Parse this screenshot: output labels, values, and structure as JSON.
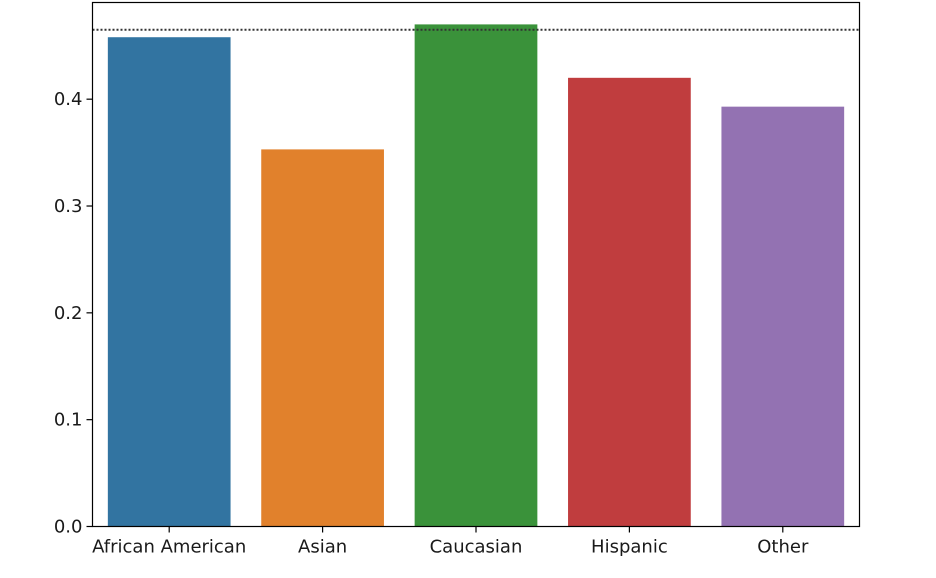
{
  "chart_data": {
    "type": "bar",
    "categories": [
      "African American",
      "Asian",
      "Caucasian",
      "Hispanic",
      "Other"
    ],
    "values": [
      0.458,
      0.353,
      0.47,
      0.42,
      0.393
    ],
    "colors": [
      "#3274a1",
      "#e1812c",
      "#3a923a",
      "#c03d3e",
      "#9372b2"
    ],
    "reference_line": {
      "value": 0.465,
      "style": "dotted",
      "color": "#333333"
    },
    "y_ticks": [
      "0.0",
      "0.1",
      "0.2",
      "0.3",
      "0.4"
    ],
    "y_tick_values": [
      0.0,
      0.1,
      0.2,
      0.3,
      0.4
    ],
    "ylim": [
      0,
      0.4905
    ],
    "grid": false,
    "title": "",
    "xlabel": "",
    "ylabel": ""
  }
}
